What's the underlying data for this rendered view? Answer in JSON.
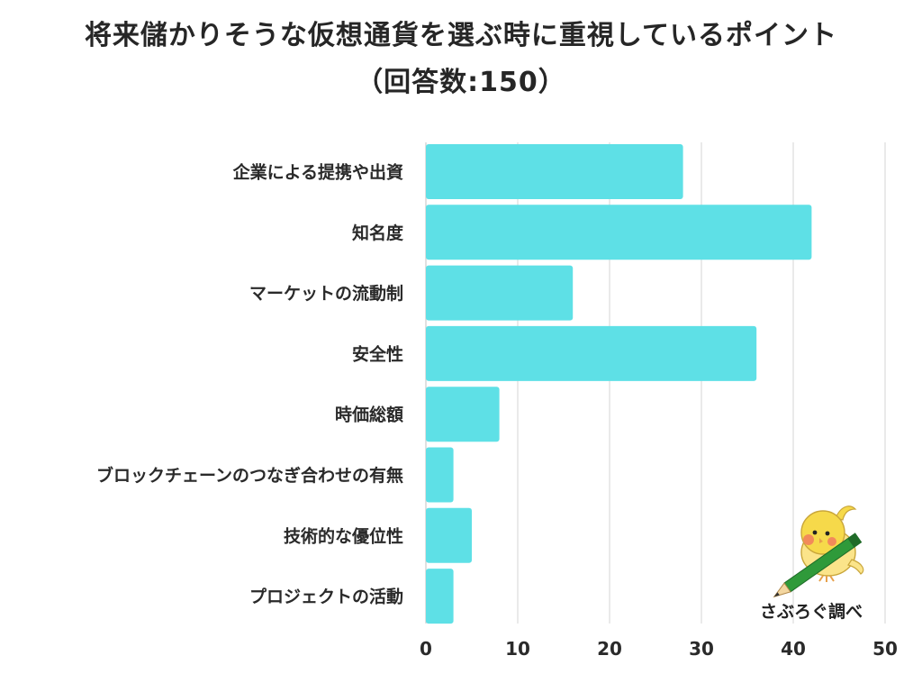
{
  "title_line1": "将来儲かりそうな仮想通貨を選ぶ時に重視しているポイント",
  "title_line2": "（回答数:150）",
  "credit": "さぶろぐ調べ",
  "bar_color": "#5ee0e6",
  "chart_data": {
    "type": "bar",
    "orientation": "horizontal",
    "categories": [
      "企業による提携や出資",
      "知名度",
      "マーケットの流動制",
      "安全性",
      "時価総額",
      "ブロックチェーンのつなぎ合わせの有無",
      "技術的な優位性",
      "プロジェクトの活動"
    ],
    "values": [
      28,
      42,
      16,
      36,
      8,
      3,
      5,
      3
    ],
    "xlim": [
      0,
      50
    ],
    "xticks": [
      0,
      10,
      20,
      30,
      40,
      50
    ],
    "grid": true
  }
}
